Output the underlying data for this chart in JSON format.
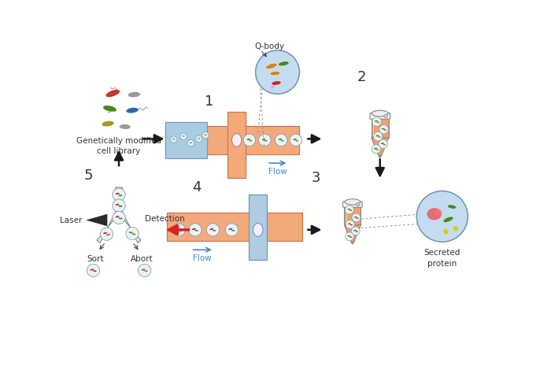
{
  "bg_color": "#ffffff",
  "labels": {
    "step1": "1",
    "step2": "2",
    "step3": "3",
    "step4": "4",
    "step5": "5",
    "qbody": "Q-body",
    "flow1": "Flow",
    "flow2": "Flow",
    "cell_lib": "Genetically modified\ncell library",
    "secreted": "Secreted\nprotein",
    "laser": "Laser",
    "detection": "Detection",
    "sort": "Sort",
    "abort": "Abort"
  },
  "colors": {
    "orange_channel": "#F4A97A",
    "blue_channel": "#A8CDE0",
    "blue_channel2": "#B0CCE0",
    "droplet_fill": "#EAF4F8",
    "droplet_stroke": "#9AABB8",
    "tube_fill": "#F0A070",
    "tube_stroke": "#777777",
    "arrow_black": "#1A1A1A",
    "arrow_blue": "#4488CC",
    "arrow_red": "#DD2222",
    "text_dark": "#333333",
    "circle_bg": "#C5DCF0",
    "bacteria_red": "#CC2222",
    "bacteria_dark_red": "#AA1111",
    "bacteria_green": "#4A8822",
    "bacteria_olive": "#8B8B00",
    "bacteria_orange": "#CC7722",
    "bacteria_gray": "#8899AA",
    "bacteria_pink": "#CC6688"
  }
}
